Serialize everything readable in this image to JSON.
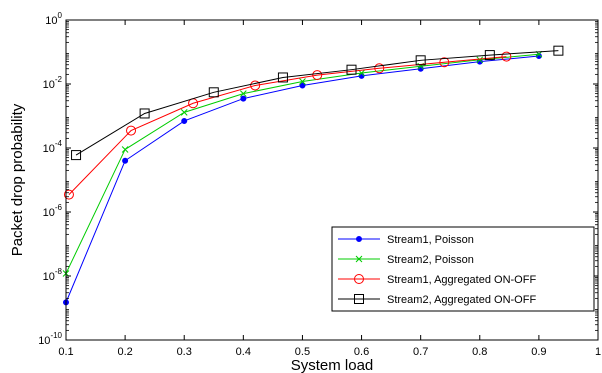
{
  "chart_data": {
    "type": "line",
    "title": "",
    "xlabel": "System load",
    "ylabel": "Packet drop probability",
    "xlim": [
      0.1,
      1
    ],
    "ylim_log10": [
      -10,
      0
    ],
    "yscale": "log",
    "grid": false,
    "legend_position": "bottom-right",
    "x_ticks": [
      "0.1",
      "0.2",
      "0.3",
      "0.4",
      "0.5",
      "0.6",
      "0.7",
      "0.8",
      "0.9",
      "1"
    ],
    "y_ticks": [
      {
        "base": "10",
        "exp": "-10"
      },
      {
        "base": "10",
        "exp": "-8"
      },
      {
        "base": "10",
        "exp": "-6"
      },
      {
        "base": "10",
        "exp": "-4"
      },
      {
        "base": "10",
        "exp": "-2"
      },
      {
        "base": "10",
        "exp": "0"
      }
    ],
    "series": [
      {
        "name": "Stream1, Poisson",
        "color": "#0000ff",
        "marker": "dot",
        "x": [
          0.1,
          0.2,
          0.3,
          0.4,
          0.5,
          0.6,
          0.7,
          0.8,
          0.9
        ],
        "y": [
          1.5e-09,
          4e-05,
          0.0007,
          0.0035,
          0.009,
          0.018,
          0.03,
          0.05,
          0.075
        ]
      },
      {
        "name": "Stream2, Poisson",
        "color": "#00cc00",
        "marker": "x",
        "x": [
          0.1,
          0.2,
          0.3,
          0.4,
          0.5,
          0.6,
          0.7,
          0.8,
          0.9
        ],
        "y": [
          1.2e-08,
          9e-05,
          0.0013,
          0.005,
          0.012,
          0.022,
          0.036,
          0.057,
          0.085
        ]
      },
      {
        "name": "Stream1, Aggregated ON-OFF",
        "color": "#ff0000",
        "marker": "circle",
        "x": [
          0.105,
          0.21,
          0.315,
          0.42,
          0.525,
          0.63,
          0.74,
          0.845
        ],
        "y": [
          3.5e-06,
          0.00035,
          0.0025,
          0.009,
          0.019,
          0.031,
          0.048,
          0.072
        ]
      },
      {
        "name": "Stream2, Aggregated ON-OFF",
        "color": "#000000",
        "marker": "square",
        "x": [
          0.117,
          0.233,
          0.35,
          0.467,
          0.583,
          0.7,
          0.817,
          0.933
        ],
        "y": [
          6e-05,
          0.0012,
          0.0055,
          0.016,
          0.028,
          0.055,
          0.08,
          0.11
        ]
      }
    ]
  }
}
